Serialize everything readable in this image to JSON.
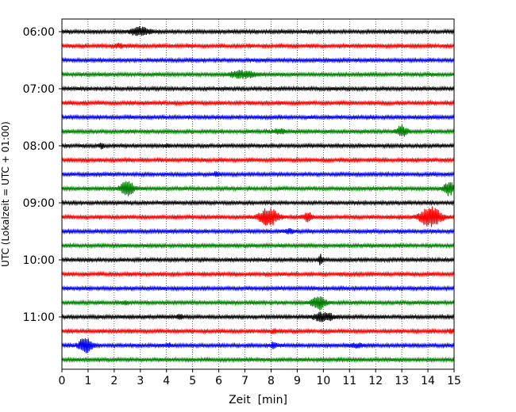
{
  "chart_data": {
    "type": "line",
    "title": "",
    "xlabel": "Zeit  [min]",
    "ylabel": "UTC (Lokalzeit = UTC + 01:00)",
    "xlim": [
      0,
      15
    ],
    "x_ticks": [
      "0",
      "1",
      "2",
      "3",
      "4",
      "5",
      "6",
      "7",
      "8",
      "9",
      "10",
      "11",
      "12",
      "13",
      "14",
      "15"
    ],
    "y_tick_labels": [
      "06:00",
      "07:00",
      "08:00",
      "09:00",
      "10:00",
      "11:00"
    ],
    "y_tick_rows": [
      0,
      4,
      8,
      12,
      16,
      20
    ],
    "grid": "vertical-dotted",
    "trace_colors": [
      "#000000",
      "#ff0000",
      "#0000ff",
      "#008000"
    ],
    "rows": [
      {
        "time": "06:00",
        "color": "#000000",
        "events": [
          {
            "x": 3.0,
            "amp": 5,
            "w": 0.35
          }
        ]
      },
      {
        "time": "06:15",
        "color": "#ff0000",
        "events": [
          {
            "x": 2.2,
            "amp": 2,
            "w": 0.15
          }
        ]
      },
      {
        "time": "06:30",
        "color": "#0000ff",
        "events": []
      },
      {
        "time": "06:45",
        "color": "#008000",
        "events": [
          {
            "x": 6.9,
            "amp": 4,
            "w": 0.5
          }
        ]
      },
      {
        "time": "07:00",
        "color": "#000000",
        "events": []
      },
      {
        "time": "07:15",
        "color": "#ff0000",
        "events": []
      },
      {
        "time": "07:30",
        "color": "#0000ff",
        "events": []
      },
      {
        "time": "07:45",
        "color": "#008000",
        "events": [
          {
            "x": 13.0,
            "amp": 7,
            "w": 0.2
          },
          {
            "x": 8.3,
            "amp": 2,
            "w": 0.3
          }
        ]
      },
      {
        "time": "08:00",
        "color": "#000000",
        "events": [
          {
            "x": 1.5,
            "amp": 3,
            "w": 0.1
          },
          {
            "x": 4.0,
            "amp": 2,
            "w": 0.1
          }
        ]
      },
      {
        "time": "08:15",
        "color": "#ff0000",
        "events": []
      },
      {
        "time": "08:30",
        "color": "#0000ff",
        "events": [
          {
            "x": 5.9,
            "amp": 3,
            "w": 0.1
          }
        ]
      },
      {
        "time": "08:45",
        "color": "#008000",
        "events": [
          {
            "x": 2.5,
            "amp": 9,
            "w": 0.25
          },
          {
            "x": 14.8,
            "amp": 8,
            "w": 0.2
          }
        ]
      },
      {
        "time": "09:00",
        "color": "#000000",
        "events": []
      },
      {
        "time": "09:15",
        "color": "#ff0000",
        "events": [
          {
            "x": 7.9,
            "amp": 11,
            "w": 0.35
          },
          {
            "x": 9.4,
            "amp": 5,
            "w": 0.2
          },
          {
            "x": 14.1,
            "amp": 12,
            "w": 0.4
          }
        ]
      },
      {
        "time": "09:30",
        "color": "#0000ff",
        "events": [
          {
            "x": 8.7,
            "amp": 2,
            "w": 0.2
          }
        ]
      },
      {
        "time": "09:45",
        "color": "#008000",
        "events": []
      },
      {
        "time": "10:00",
        "color": "#000000",
        "events": [
          {
            "x": 9.9,
            "amp": 6,
            "w": 0.08
          }
        ]
      },
      {
        "time": "10:15",
        "color": "#ff0000",
        "events": []
      },
      {
        "time": "10:30",
        "color": "#0000ff",
        "events": []
      },
      {
        "time": "10:45",
        "color": "#008000",
        "events": [
          {
            "x": 9.8,
            "amp": 9,
            "w": 0.25
          },
          {
            "x": 2.4,
            "amp": 2,
            "w": 0.1
          }
        ]
      },
      {
        "time": "11:00",
        "color": "#000000",
        "events": [
          {
            "x": 4.5,
            "amp": 4,
            "w": 0.1
          },
          {
            "x": 10.0,
            "amp": 5,
            "w": 0.4
          }
        ]
      },
      {
        "time": "11:15",
        "color": "#ff0000",
        "events": [
          {
            "x": 8.1,
            "amp": 3,
            "w": 0.1
          },
          {
            "x": 14.9,
            "amp": 3,
            "w": 0.1
          }
        ]
      },
      {
        "time": "11:30",
        "color": "#0000ff",
        "events": [
          {
            "x": 0.9,
            "amp": 10,
            "w": 0.25
          },
          {
            "x": 8.1,
            "amp": 4,
            "w": 0.1
          },
          {
            "x": 4.1,
            "amp": 2,
            "w": 0.1
          },
          {
            "x": 11.3,
            "amp": 2,
            "w": 0.3
          }
        ]
      },
      {
        "time": "11:45",
        "color": "#008000",
        "events": []
      }
    ]
  }
}
